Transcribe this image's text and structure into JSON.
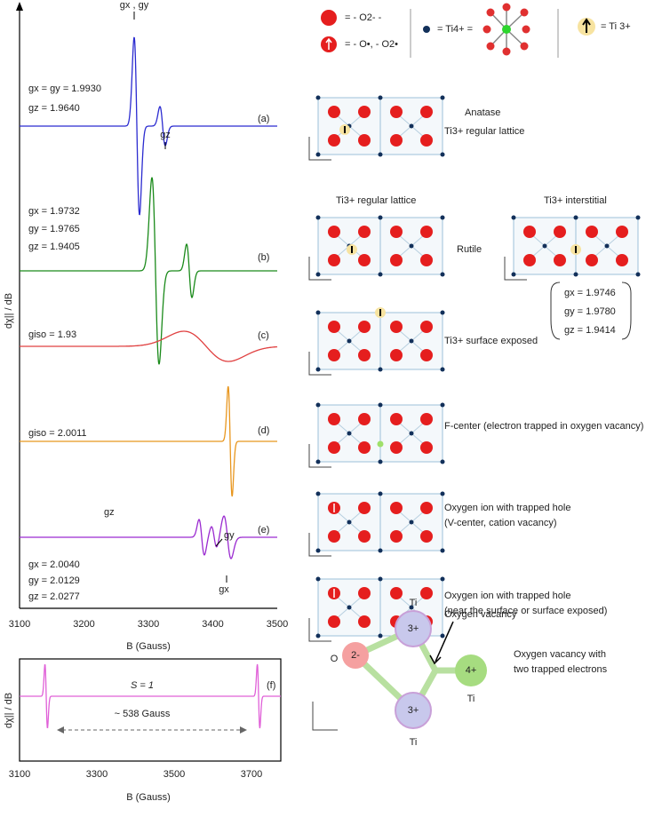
{
  "plot_top": {
    "ylabel": "dχ|| / dB",
    "xlabel": "B (Gauss)",
    "xticks": [
      "3100",
      "3200",
      "3300",
      "3400",
      "3500"
    ],
    "spectra": [
      {
        "tag": "(a)",
        "params": [
          "gx = gy = 1.9930",
          "gz = 1.9640"
        ],
        "peak_labels": [
          "gx , gy",
          "gz"
        ]
      },
      {
        "tag": "(b)",
        "params": [
          "gx = 1.9732",
          "gy = 1.9765",
          "gz = 1.9405"
        ]
      },
      {
        "tag": "(c)",
        "params": [
          "giso = 1.93"
        ]
      },
      {
        "tag": "(d)",
        "params": [
          "giso = 2.0011"
        ]
      },
      {
        "tag": "(e)",
        "params": [
          "gx = 2.0040",
          "gy = 2.0129",
          "gz = 2.0277"
        ],
        "peak_labels": [
          "gz",
          "gy",
          "gx"
        ]
      }
    ]
  },
  "plot_bottom": {
    "ylabel": "dχ|| / dB",
    "xlabel": "B (Gauss)",
    "xticks": [
      "3100",
      "3300",
      "3500",
      "3700"
    ],
    "tag": "(f)",
    "spin": "S = 1",
    "separation": "~ 538 Gauss"
  },
  "legend": [
    "= - O2- -",
    "= - O•, - O2•",
    "= Ti4+ =",
    "= Ti 3+"
  ],
  "structures": {
    "anatase": "Anatase",
    "a_site": "Ti3+ regular lattice",
    "b_regular": "Ti3+ regular lattice",
    "b_interstitial": "Ti3+ interstitial",
    "rutile": "Rutile",
    "interstitial_g": [
      "gx = 1.9746",
      "gy = 1.9780",
      "gz = 1.9414"
    ],
    "c_site": "Ti3+ surface exposed",
    "d_site": "F-center (electron trapped in oxygen vacancy)",
    "e_site": [
      "Oxygen ion with trapped hole",
      "(V-center, cation vacancy)"
    ],
    "e2_site": [
      "Oxygen ion with trapped hole",
      "(near the surface or surface exposed)"
    ]
  },
  "vacancy": {
    "ti_top": "Ti",
    "ti_top_charge": "3+",
    "ti_bottom": "Ti",
    "ti_bottom_charge": "3+",
    "o": "O",
    "o_charge": "2-",
    "ti_right": "Ti",
    "ti_right_charge": "4+",
    "pointer": "Oxygen vacancy",
    "caption": [
      "Oxygen vacancy with",
      "two trapped electrons"
    ]
  }
}
